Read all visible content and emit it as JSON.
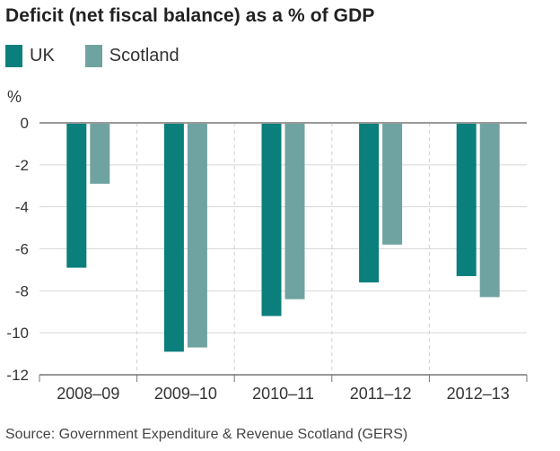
{
  "chart_data": {
    "type": "bar",
    "title": "Deficit (net fiscal balance) as a % of GDP",
    "ylabel": "%",
    "xlabel": "",
    "categories": [
      "2008–09",
      "2009–10",
      "2010–11",
      "2011–12",
      "2012–13"
    ],
    "series": [
      {
        "name": "UK",
        "color": "#0a7f7c",
        "values": [
          -6.9,
          -10.9,
          -9.2,
          -7.6,
          -7.3
        ]
      },
      {
        "name": "Scotland",
        "color": "#6fa3a2",
        "values": [
          -2.9,
          -10.7,
          -8.4,
          -5.8,
          -8.3
        ]
      }
    ],
    "ylim": [
      -12,
      0
    ],
    "yticks": [
      0,
      -2,
      -4,
      -6,
      -8,
      -10,
      -12
    ],
    "grid": true,
    "legend_position": "top-left",
    "source": "Source: Government Expenditure & Revenue Scotland (GERS)"
  }
}
